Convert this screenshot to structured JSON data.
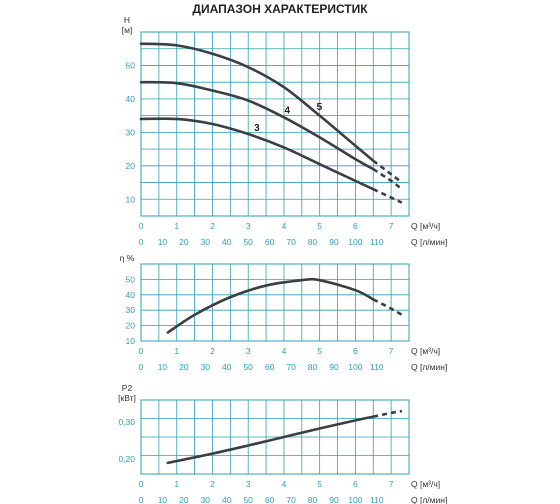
{
  "title": "ДИАПАЗОН ХАРАКТЕРИСТИК",
  "colors": {
    "grid": "#2f9fb5",
    "curve": "#3a3f45",
    "text": "#333333"
  },
  "chart_data": [
    {
      "type": "line",
      "ylabel": "H",
      "yunit": "[м]",
      "xlabel_m3": "Q [м³/ч]",
      "xlabel_lmin": "Q [л/мин]",
      "xlim": [
        0,
        7.5
      ],
      "ylim": [
        5,
        60
      ],
      "x_ticks_m3": [
        0,
        1,
        2,
        3,
        4,
        5,
        6,
        7
      ],
      "x_ticks_lmin": [
        0,
        10,
        20,
        30,
        40,
        50,
        60,
        70,
        80,
        90,
        100,
        110
      ],
      "y_ticks": [
        10,
        20,
        30,
        40,
        50
      ],
      "grid": true,
      "series": [
        {
          "name": "5",
          "points": [
            [
              0,
              56.5
            ],
            [
              1,
              56
            ],
            [
              2,
              53.5
            ],
            [
              3,
              49.5
            ],
            [
              4,
              43.5
            ],
            [
              5,
              35
            ],
            [
              6,
              26
            ],
            [
              6.5,
              21.5
            ]
          ],
          "dashed": [
            [
              6.5,
              21.5
            ],
            [
              7,
              17.5
            ],
            [
              7.3,
              15
            ]
          ]
        },
        {
          "name": "4",
          "points": [
            [
              0,
              45
            ],
            [
              1,
              44.7
            ],
            [
              2,
              42.5
            ],
            [
              3,
              39.5
            ],
            [
              4,
              34.5
            ],
            [
              5,
              28.5
            ],
            [
              6,
              22
            ],
            [
              6.5,
              19
            ]
          ],
          "dashed": [
            [
              6.5,
              19
            ],
            [
              7,
              15.5
            ],
            [
              7.3,
              13
            ]
          ]
        },
        {
          "name": "3",
          "points": [
            [
              0,
              34
            ],
            [
              1,
              34
            ],
            [
              2,
              32.5
            ],
            [
              3,
              29.5
            ],
            [
              4,
              25.5
            ],
            [
              5,
              20.5
            ],
            [
              6,
              15.5
            ],
            [
              6.5,
              13
            ]
          ],
          "dashed": [
            [
              6.5,
              13
            ],
            [
              7,
              10.5
            ],
            [
              7.3,
              9
            ]
          ]
        }
      ]
    },
    {
      "type": "line",
      "ylabel": "η %",
      "xlabel_m3": "Q [м³/ч]",
      "xlabel_lmin": "Q [л/мин]",
      "xlim": [
        0,
        7.5
      ],
      "ylim": [
        10,
        60
      ],
      "x_ticks_m3": [
        0,
        1,
        2,
        3,
        4,
        5,
        6,
        7
      ],
      "x_ticks_lmin": [
        0,
        10,
        20,
        30,
        40,
        50,
        60,
        70,
        80,
        90,
        100,
        110
      ],
      "y_ticks": [
        10,
        20,
        30,
        40,
        50
      ],
      "grid": true,
      "series": [
        {
          "name": "",
          "points": [
            [
              0.75,
              15.5
            ],
            [
              1.5,
              27
            ],
            [
              2.5,
              38.5
            ],
            [
              3.5,
              46
            ],
            [
              4.5,
              49.5
            ],
            [
              5,
              49.5
            ],
            [
              6,
              43
            ],
            [
              6.5,
              37
            ]
          ],
          "dashed": [
            [
              6.5,
              37
            ],
            [
              7,
              31
            ],
            [
              7.3,
              27
            ]
          ]
        }
      ]
    },
    {
      "type": "line",
      "ylabel": "P2",
      "yunit": "[кВт]",
      "xlabel_m3": "Q [м³/ч]",
      "xlabel_lmin": "Q [л/мин]",
      "xlim": [
        0,
        7.5
      ],
      "ylim": [
        0.16,
        0.36
      ],
      "x_ticks_m3": [
        0,
        1,
        2,
        3,
        4,
        5,
        6,
        7
      ],
      "x_ticks_lmin": [
        0,
        10,
        20,
        30,
        40,
        50,
        60,
        70,
        80,
        90,
        100,
        110
      ],
      "y_ticks": [
        "0,20",
        "0,30"
      ],
      "y_tick_values": [
        0.2,
        0.3
      ],
      "grid": true,
      "series": [
        {
          "name": "",
          "points": [
            [
              0.75,
              0.19
            ],
            [
              2,
              0.215
            ],
            [
              3,
              0.237
            ],
            [
              4,
              0.26
            ],
            [
              5,
              0.283
            ],
            [
              6,
              0.305
            ],
            [
              6.5,
              0.315
            ]
          ],
          "dashed": [
            [
              6.5,
              0.315
            ],
            [
              7,
              0.325
            ],
            [
              7.3,
              0.33
            ]
          ]
        }
      ]
    }
  ]
}
